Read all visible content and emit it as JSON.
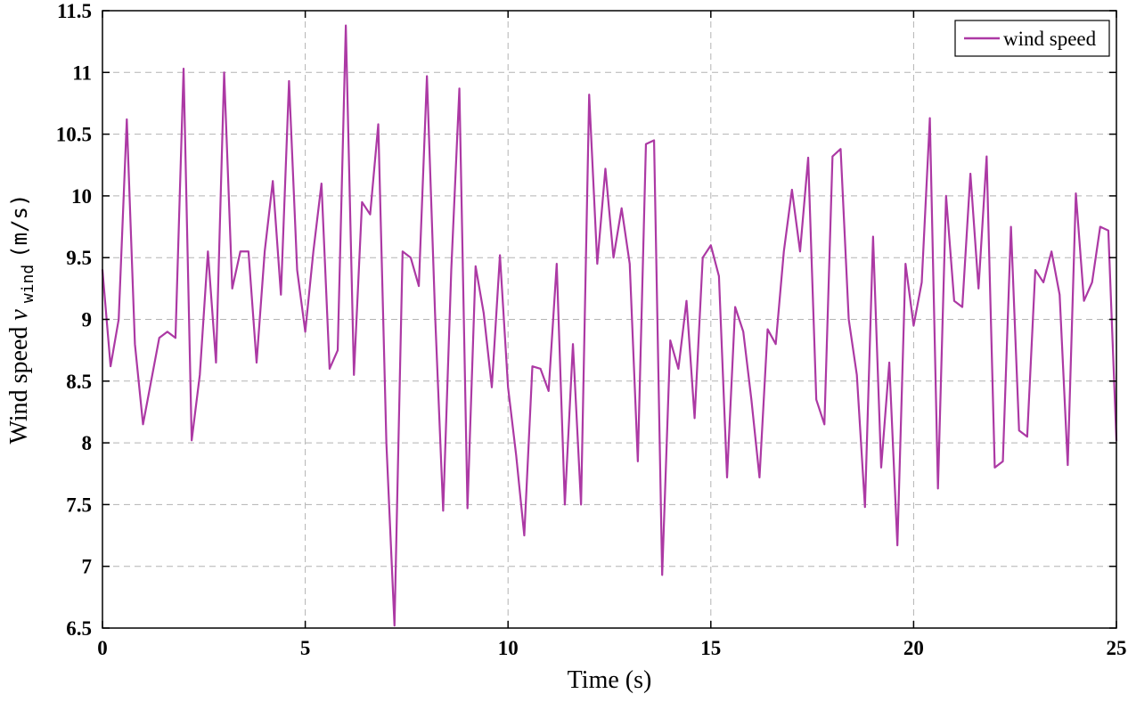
{
  "figure": {
    "xlabel": "Time (s)",
    "ylabel_prefix": "Wind speed ",
    "ylabel_var": "v",
    "ylabel_sub": "wind",
    "ylabel_unit": " (m/s)",
    "legend_label": "wind speed"
  },
  "chart_data": {
    "type": "line",
    "title": "",
    "xlabel": "Time (s)",
    "ylabel": "Wind speed v_wind (m/s)",
    "legend": [
      "wind speed"
    ],
    "legend_position": "top-right",
    "grid": true,
    "grid_style": "dashed",
    "line_color": "#AC39A4",
    "grid_color": "#b3b3b3",
    "axis_color": "#000000",
    "xlim": [
      0,
      25
    ],
    "ylim": [
      6.5,
      11.5
    ],
    "xticks": [
      0,
      5,
      10,
      15,
      20,
      25
    ],
    "yticks": [
      6.5,
      7,
      7.5,
      8,
      8.5,
      9,
      9.5,
      10,
      10.5,
      11,
      11.5
    ],
    "points": [
      [
        0,
        9.4
      ],
      [
        0.2,
        8.62
      ],
      [
        0.4,
        9.0
      ],
      [
        0.6,
        10.62
      ],
      [
        0.8,
        8.8
      ],
      [
        1,
        8.15
      ],
      [
        1.2,
        8.5
      ],
      [
        1.4,
        8.85
      ],
      [
        1.6,
        8.9
      ],
      [
        1.8,
        8.85
      ],
      [
        2,
        11.03
      ],
      [
        2.2,
        8.02
      ],
      [
        2.4,
        8.55
      ],
      [
        2.6,
        9.55
      ],
      [
        2.8,
        8.65
      ],
      [
        3,
        11.0
      ],
      [
        3.2,
        9.25
      ],
      [
        3.4,
        9.55
      ],
      [
        3.6,
        9.55
      ],
      [
        3.8,
        8.65
      ],
      [
        4,
        9.55
      ],
      [
        4.2,
        10.12
      ],
      [
        4.4,
        9.2
      ],
      [
        4.6,
        10.93
      ],
      [
        4.8,
        9.4
      ],
      [
        5,
        8.9
      ],
      [
        5.2,
        9.55
      ],
      [
        5.4,
        10.1
      ],
      [
        5.6,
        8.6
      ],
      [
        5.8,
        8.75
      ],
      [
        6,
        11.38
      ],
      [
        6.2,
        8.55
      ],
      [
        6.4,
        9.95
      ],
      [
        6.6,
        9.85
      ],
      [
        6.8,
        10.58
      ],
      [
        7,
        8.0
      ],
      [
        7.2,
        6.52
      ],
      [
        7.4,
        9.55
      ],
      [
        7.6,
        9.5
      ],
      [
        7.8,
        9.27
      ],
      [
        8,
        10.97
      ],
      [
        8.2,
        9.05
      ],
      [
        8.4,
        7.45
      ],
      [
        8.6,
        9.4
      ],
      [
        8.8,
        10.87
      ],
      [
        9,
        7.47
      ],
      [
        9.2,
        9.43
      ],
      [
        9.4,
        9.05
      ],
      [
        9.6,
        8.45
      ],
      [
        9.8,
        9.52
      ],
      [
        10,
        8.45
      ],
      [
        10.2,
        7.9
      ],
      [
        10.4,
        7.25
      ],
      [
        10.6,
        8.62
      ],
      [
        10.8,
        8.6
      ],
      [
        11,
        8.42
      ],
      [
        11.2,
        9.45
      ],
      [
        11.4,
        7.5
      ],
      [
        11.6,
        8.8
      ],
      [
        11.8,
        7.5
      ],
      [
        12,
        10.82
      ],
      [
        12.2,
        9.45
      ],
      [
        12.4,
        10.22
      ],
      [
        12.6,
        9.5
      ],
      [
        12.8,
        9.9
      ],
      [
        13,
        9.45
      ],
      [
        13.2,
        7.85
      ],
      [
        13.4,
        10.42
      ],
      [
        13.6,
        10.45
      ],
      [
        13.8,
        6.93
      ],
      [
        14,
        8.83
      ],
      [
        14.2,
        8.6
      ],
      [
        14.4,
        9.15
      ],
      [
        14.6,
        8.2
      ],
      [
        14.8,
        9.5
      ],
      [
        15,
        9.6
      ],
      [
        15.2,
        9.35
      ],
      [
        15.4,
        7.72
      ],
      [
        15.6,
        9.1
      ],
      [
        15.8,
        8.9
      ],
      [
        16,
        8.35
      ],
      [
        16.2,
        7.72
      ],
      [
        16.4,
        8.92
      ],
      [
        16.6,
        8.8
      ],
      [
        16.8,
        9.55
      ],
      [
        17,
        10.05
      ],
      [
        17.2,
        9.55
      ],
      [
        17.4,
        10.31
      ],
      [
        17.6,
        8.35
      ],
      [
        17.8,
        8.15
      ],
      [
        18,
        10.32
      ],
      [
        18.2,
        10.38
      ],
      [
        18.4,
        9.0
      ],
      [
        18.6,
        8.55
      ],
      [
        18.8,
        7.48
      ],
      [
        19,
        9.67
      ],
      [
        19.2,
        7.8
      ],
      [
        19.4,
        8.65
      ],
      [
        19.6,
        7.17
      ],
      [
        19.8,
        9.45
      ],
      [
        20,
        8.95
      ],
      [
        20.2,
        9.3
      ],
      [
        20.4,
        10.63
      ],
      [
        20.6,
        7.63
      ],
      [
        20.8,
        10.0
      ],
      [
        21,
        9.15
      ],
      [
        21.2,
        9.1
      ],
      [
        21.4,
        10.18
      ],
      [
        21.6,
        9.25
      ],
      [
        21.8,
        10.32
      ],
      [
        22,
        7.8
      ],
      [
        22.2,
        7.85
      ],
      [
        22.4,
        9.75
      ],
      [
        22.6,
        8.1
      ],
      [
        22.8,
        8.05
      ],
      [
        23,
        9.4
      ],
      [
        23.2,
        9.3
      ],
      [
        23.4,
        9.55
      ],
      [
        23.6,
        9.2
      ],
      [
        23.8,
        7.82
      ],
      [
        24,
        10.02
      ],
      [
        24.2,
        9.15
      ],
      [
        24.4,
        9.3
      ],
      [
        24.6,
        9.75
      ],
      [
        24.8,
        9.72
      ],
      [
        25,
        8.02
      ]
    ]
  }
}
